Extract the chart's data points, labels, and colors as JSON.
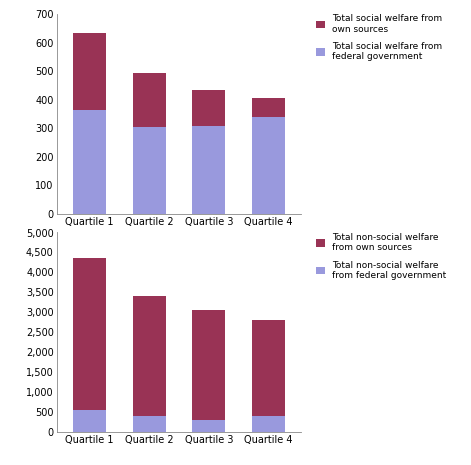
{
  "categories": [
    "Quartile 1",
    "Quartile 2",
    "Quartile 3",
    "Quartile 4"
  ],
  "social_federal": [
    365,
    305,
    308,
    338
  ],
  "social_own": [
    270,
    190,
    127,
    67
  ],
  "nonsocial_federal": [
    550,
    400,
    300,
    400
  ],
  "nonsocial_own": [
    3800,
    3000,
    2750,
    2400
  ],
  "color_federal_social": "#9999dd",
  "color_own_social": "#993355",
  "color_federal_nonsocial": "#9999dd",
  "color_own_nonsocial": "#993355",
  "legend1_labels": [
    "Total social welfare from\nown sources",
    "Total social welfare from\nfederal government"
  ],
  "legend2_labels": [
    "Total non-social welfare\nfrom own sources",
    "Total non-social welfare\nfrom federal government"
  ],
  "ylim1": [
    0,
    700
  ],
  "yticks1": [
    0,
    100,
    200,
    300,
    400,
    500,
    600,
    700
  ],
  "ylim2": [
    0,
    5000
  ],
  "yticks2": [
    0,
    500,
    1000,
    1500,
    2000,
    2500,
    3000,
    3500,
    4000,
    4500,
    5000
  ],
  "background_color": "#ffffff",
  "bar_width": 0.55
}
